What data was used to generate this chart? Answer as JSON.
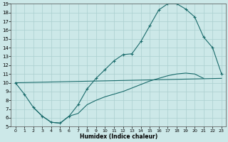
{
  "xlabel": "Humidex (Indice chaleur)",
  "bg_color": "#cce8e8",
  "grid_color": "#aacfcf",
  "line_color": "#1a6b6b",
  "xlim": [
    -0.5,
    23.5
  ],
  "ylim": [
    5,
    19
  ],
  "xticks": [
    0,
    1,
    2,
    3,
    4,
    5,
    6,
    7,
    8,
    9,
    10,
    11,
    12,
    13,
    14,
    15,
    16,
    17,
    18,
    19,
    20,
    21,
    22,
    23
  ],
  "yticks": [
    5,
    6,
    7,
    8,
    9,
    10,
    11,
    12,
    13,
    14,
    15,
    16,
    17,
    18,
    19
  ],
  "line1_x": [
    0,
    1,
    2,
    3,
    4,
    5,
    6,
    7,
    8,
    9,
    10,
    11,
    12,
    13,
    14,
    15,
    16,
    17,
    18,
    19,
    20,
    21,
    22,
    23
  ],
  "line1_y": [
    10,
    8.7,
    7.2,
    6.2,
    5.5,
    5.4,
    6.2,
    7.5,
    9.3,
    10.5,
    11.5,
    12.5,
    13.2,
    13.3,
    14.7,
    16.5,
    18.3,
    19.0,
    19.0,
    18.4,
    17.5,
    15.2,
    14.0,
    11.0
  ],
  "line2_x": [
    0,
    23
  ],
  "line2_y": [
    10,
    10.5
  ],
  "line3_x": [
    2,
    3,
    4,
    5,
    6,
    7,
    8,
    9,
    10,
    11,
    12,
    13,
    14,
    15,
    16,
    17,
    18,
    19,
    20,
    21
  ],
  "line3_y": [
    7.2,
    6.2,
    5.5,
    5.4,
    6.2,
    6.5,
    7.5,
    8.0,
    8.4,
    8.7,
    9.0,
    9.4,
    9.8,
    10.2,
    10.5,
    10.8,
    11.0,
    11.1,
    11.0,
    10.5
  ]
}
